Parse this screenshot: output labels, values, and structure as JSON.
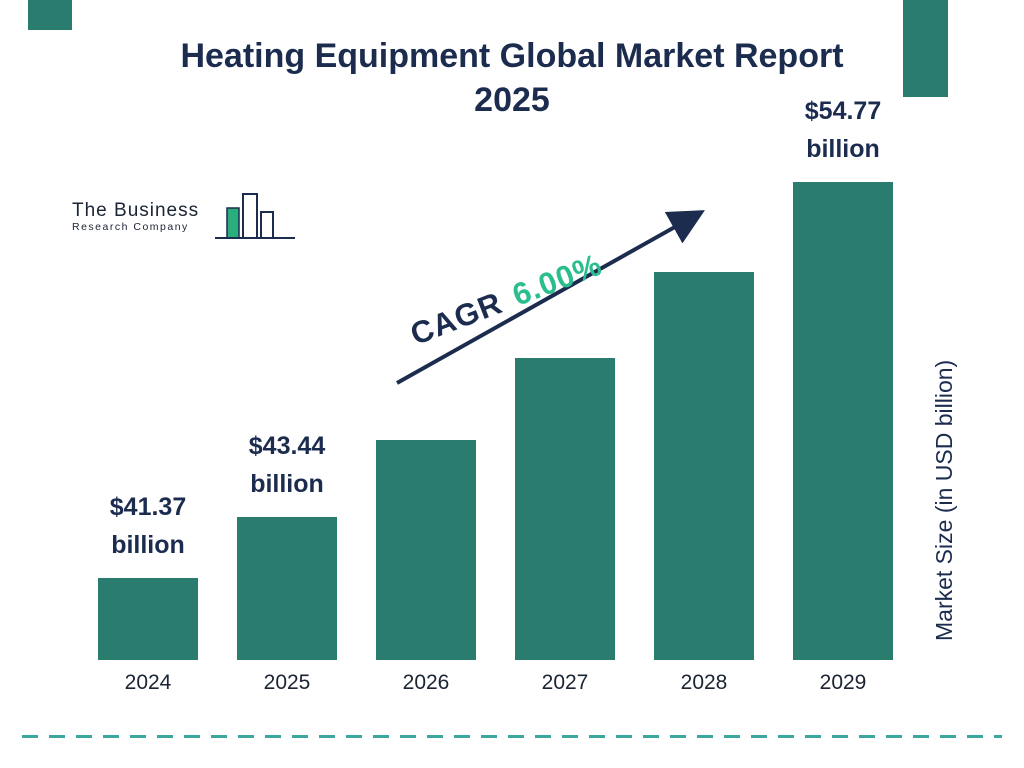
{
  "title": {
    "line1": "Heating Equipment Global Market Report",
    "line2": "2025"
  },
  "logo": {
    "name_top": "The Business",
    "name_bottom": "Research Company"
  },
  "cagr": {
    "label": "CAGR",
    "value": "6.00%"
  },
  "chart_data": {
    "type": "bar",
    "title": "Heating Equipment Global Market Report 2025",
    "categories": [
      "2024",
      "2025",
      "2026",
      "2027",
      "2028",
      "2029"
    ],
    "values": [
      41.37,
      43.44,
      46.05,
      48.81,
      51.74,
      54.77
    ],
    "value_labels": [
      {
        "year": "2024",
        "amount": "$41.37",
        "unit": "billion"
      },
      {
        "year": "2025",
        "amount": "$43.44",
        "unit": "billion"
      },
      {
        "year": "2029",
        "amount": "$54.77",
        "unit": "billion"
      }
    ],
    "cagr": "6.00%",
    "xlabel": "",
    "ylabel": "Market Size (in USD billion)",
    "legend": "off",
    "grid": "off",
    "bar_color": "#2A7C6E"
  },
  "colors": {
    "navy": "#1C2C4F",
    "teal_bar": "#2A7C6E",
    "green_accent": "#2ABD8D",
    "dashed_line": "#3DA79F"
  }
}
